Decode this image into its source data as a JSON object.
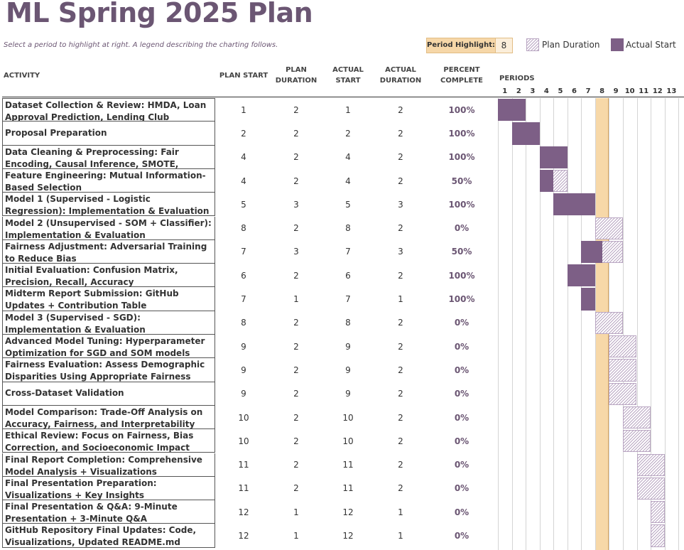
{
  "title": "ML Spring 2025 Plan",
  "subtitle": "Select a period to highlight at right.  A legend describing the charting follows.",
  "period_highlight": {
    "label": "Period Highlight:",
    "value": 8
  },
  "legend": {
    "plan": "Plan Duration",
    "actual": "Actual Start"
  },
  "headers": {
    "activity": "ACTIVITY",
    "plan_start": "PLAN START",
    "plan_duration": "PLAN DURATION",
    "actual_start": "ACTUAL START",
    "actual_duration": "ACTUAL DURATION",
    "percent_complete": "PERCENT COMPLETE",
    "periods": "PERIODS"
  },
  "periods": [
    1,
    2,
    3,
    4,
    5,
    6,
    7,
    8,
    9,
    10,
    11,
    12,
    13
  ],
  "colors": {
    "title": "#6b5673",
    "actual": "#7d5f86",
    "plan_hatch": "#b9a6c2",
    "highlight": "#f7d8a8"
  },
  "activities": [
    {
      "name": "Dataset Collection & Review: HMDA, Loan Approval Prediction, Lending Club",
      "plan_start": 1,
      "plan_duration": 2,
      "actual_start": 1,
      "actual_duration": 2,
      "percent": "100%"
    },
    {
      "name": "Proposal Preparation",
      "plan_start": 2,
      "plan_duration": 2,
      "actual_start": 2,
      "actual_duration": 2,
      "percent": "100%"
    },
    {
      "name": "Data Cleaning & Preprocessing: Fair Encoding, Causal Inference, SMOTE, Normalization",
      "plan_start": 4,
      "plan_duration": 2,
      "actual_start": 4,
      "actual_duration": 2,
      "percent": "100%"
    },
    {
      "name": "Feature Engineering: Mutual Information-Based Selection",
      "plan_start": 4,
      "plan_duration": 2,
      "actual_start": 4,
      "actual_duration": 2,
      "percent": "50%"
    },
    {
      "name": "Model 1 (Supervised - Logistic Regression): Implementation & Evaluation",
      "plan_start": 5,
      "plan_duration": 3,
      "actual_start": 5,
      "actual_duration": 3,
      "percent": "100%"
    },
    {
      "name": "Model 2 (Unsupervised - SOM + Classifier): Implementation & Evaluation",
      "plan_start": 8,
      "plan_duration": 2,
      "actual_start": 8,
      "actual_duration": 2,
      "percent": "0%"
    },
    {
      "name": "Fairness Adjustment: Adversarial Training to Reduce Bias",
      "plan_start": 7,
      "plan_duration": 3,
      "actual_start": 7,
      "actual_duration": 3,
      "percent": "50%"
    },
    {
      "name": "Initial Evaluation: Confusion Matrix, Precision, Recall, Accuracy",
      "plan_start": 6,
      "plan_duration": 2,
      "actual_start": 6,
      "actual_duration": 2,
      "percent": "100%"
    },
    {
      "name": "Midterm Report Submission: GitHub Updates + Contribution Table",
      "plan_start": 7,
      "plan_duration": 1,
      "actual_start": 7,
      "actual_duration": 1,
      "percent": "100%"
    },
    {
      "name": "Model 3 (Supervised - SGD): Implementation & Evaluation",
      "plan_start": 8,
      "plan_duration": 2,
      "actual_start": 8,
      "actual_duration": 2,
      "percent": "0%"
    },
    {
      "name": "Advanced Model Tuning: Hyperparameter Optimization for SGD and SOM models",
      "plan_start": 9,
      "plan_duration": 2,
      "actual_start": 9,
      "actual_duration": 2,
      "percent": "0%"
    },
    {
      "name": "Fairness Evaluation: Assess Demographic Disparities Using Appropriate Fairness Metrics",
      "plan_start": 9,
      "plan_duration": 2,
      "actual_start": 9,
      "actual_duration": 2,
      "percent": "0%"
    },
    {
      "name": "Cross-Dataset Validation",
      "plan_start": 9,
      "plan_duration": 2,
      "actual_start": 9,
      "actual_duration": 2,
      "percent": "0%"
    },
    {
      "name": "Model Comparison: Trade-Off Analysis on Accuracy, Fairness, and Interpretability",
      "plan_start": 10,
      "plan_duration": 2,
      "actual_start": 10,
      "actual_duration": 2,
      "percent": "0%"
    },
    {
      "name": "Ethical Review: Focus on Fairness, Bias Correction, and Socioeconomic Impact",
      "plan_start": 10,
      "plan_duration": 2,
      "actual_start": 10,
      "actual_duration": 2,
      "percent": "0%"
    },
    {
      "name": "Final Report Completion: Comprehensive Model Analysis + Visualizations",
      "plan_start": 11,
      "plan_duration": 2,
      "actual_start": 11,
      "actual_duration": 2,
      "percent": "0%"
    },
    {
      "name": "Final Presentation Preparation: Visualizations + Key Insights",
      "plan_start": 11,
      "plan_duration": 2,
      "actual_start": 11,
      "actual_duration": 2,
      "percent": "0%"
    },
    {
      "name": "Final Presentation & Q&A: 9-Minute Presentation + 3-Minute Q&A",
      "plan_start": 12,
      "plan_duration": 1,
      "actual_start": 12,
      "actual_duration": 1,
      "percent": "0%"
    },
    {
      "name": "GitHub Repository Final Updates: Code, Visualizations, Updated README.md",
      "plan_start": 12,
      "plan_duration": 1,
      "actual_start": 12,
      "actual_duration": 1,
      "percent": "0%"
    }
  ]
}
